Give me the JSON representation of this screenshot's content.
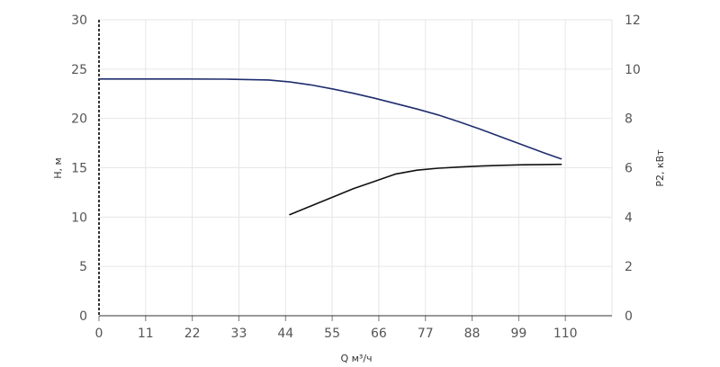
{
  "chart_data": {
    "type": "line",
    "xlabel": "Q м³/ч",
    "ylabel_left": "Н, м",
    "ylabel_right": "P2, кВт",
    "x_ticks": [
      0,
      11,
      22,
      33,
      44,
      55,
      66,
      77,
      88,
      99,
      110
    ],
    "xlim": [
      0,
      121
    ],
    "y_left_ticks": [
      0,
      5,
      10,
      15,
      20,
      25,
      30
    ],
    "ylim_left": [
      0,
      30
    ],
    "y_right_ticks": [
      0,
      2,
      4,
      6,
      8,
      10,
      12
    ],
    "ylim_right": [
      0,
      12
    ],
    "grid": true,
    "series": [
      {
        "axis": "left",
        "color": "#1f2d6e",
        "x": [
          0,
          10,
          20,
          30,
          40,
          45,
          50,
          55,
          60,
          65,
          70,
          75,
          80,
          85,
          90,
          95,
          100,
          105,
          109
        ],
        "y": [
          24.0,
          24.0,
          24.0,
          23.98,
          23.9,
          23.7,
          23.4,
          23.0,
          22.55,
          22.05,
          21.5,
          20.95,
          20.35,
          19.65,
          18.9,
          18.1,
          17.3,
          16.5,
          15.9
        ]
      },
      {
        "axis": "right",
        "color": "#111111",
        "x": [
          45,
          50,
          55,
          60,
          65,
          70,
          75,
          80,
          85,
          90,
          95,
          100,
          105,
          109
        ],
        "y": [
          4.1,
          4.45,
          4.8,
          5.15,
          5.45,
          5.75,
          5.9,
          5.98,
          6.03,
          6.07,
          6.1,
          6.12,
          6.13,
          6.14
        ]
      }
    ]
  }
}
